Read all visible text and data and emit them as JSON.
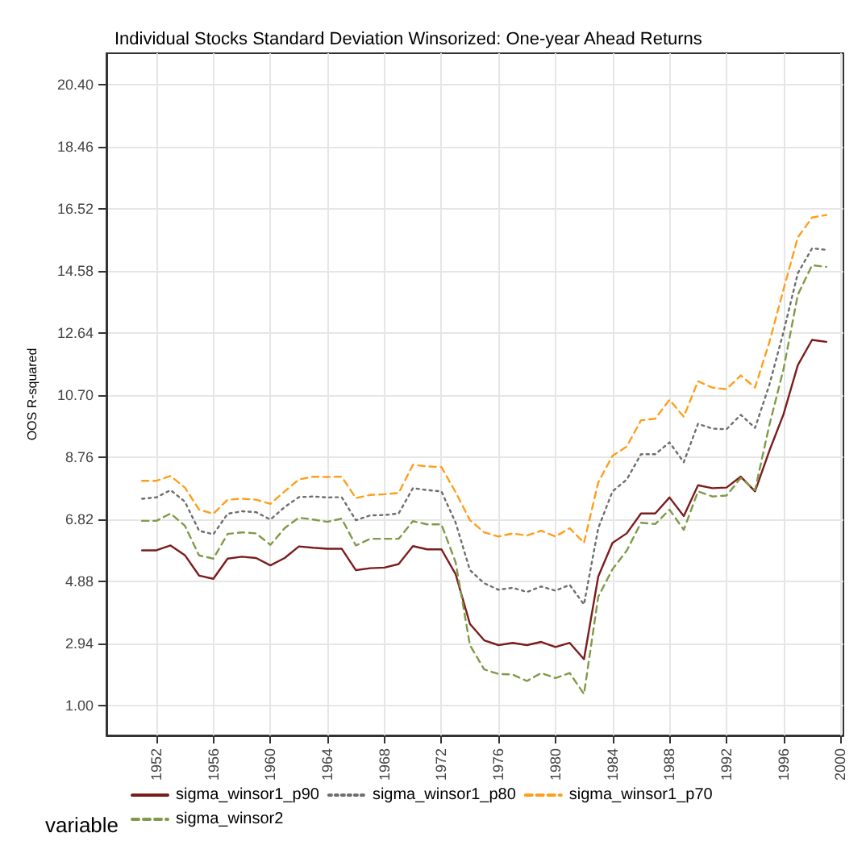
{
  "chart_data": {
    "type": "line",
    "title": "Individual Stocks Standard Deviation Winsorized: One-year Ahead Returns",
    "ylabel": "OOS R-squared",
    "legend_title": "variable",
    "x": [
      1951,
      1952,
      1953,
      1954,
      1955,
      1956,
      1957,
      1958,
      1959,
      1960,
      1961,
      1962,
      1963,
      1964,
      1965,
      1966,
      1967,
      1968,
      1969,
      1970,
      1971,
      1972,
      1973,
      1974,
      1975,
      1976,
      1977,
      1978,
      1979,
      1980,
      1981,
      1982,
      1983,
      1984,
      1985,
      1986,
      1987,
      1988,
      1989,
      1990,
      1991,
      1992,
      1993,
      1994,
      1995,
      1996,
      1997,
      1998,
      1999
    ],
    "series": [
      {
        "name": "sigma_winsor1_p90",
        "color": "#7b1c1c",
        "line_style": "solid",
        "values": [
          5.85,
          5.85,
          6.0,
          5.7,
          5.06,
          4.96,
          5.59,
          5.65,
          5.61,
          5.38,
          5.61,
          5.97,
          5.93,
          5.9,
          5.9,
          5.23,
          5.29,
          5.31,
          5.42,
          5.98,
          5.88,
          5.88,
          5.1,
          3.55,
          3.04,
          2.89,
          2.96,
          2.89,
          2.99,
          2.83,
          2.96,
          2.45,
          5.03,
          6.08,
          6.38,
          7.0,
          7.0,
          7.5,
          6.92,
          7.88,
          7.79,
          7.81,
          8.15,
          7.69,
          8.95,
          10.1,
          11.63,
          12.42,
          12.36
        ]
      },
      {
        "name": "sigma_winsor1_p80",
        "color": "#6e6e6e",
        "line_style": "dotted",
        "values": [
          7.46,
          7.5,
          7.73,
          7.37,
          6.46,
          6.35,
          6.99,
          7.07,
          7.04,
          6.81,
          7.2,
          7.51,
          7.53,
          7.5,
          7.51,
          6.79,
          6.94,
          6.95,
          7.0,
          7.79,
          7.73,
          7.69,
          6.71,
          5.23,
          4.82,
          4.62,
          4.68,
          4.55,
          4.72,
          4.59,
          4.77,
          4.16,
          6.54,
          7.69,
          8.06,
          8.85,
          8.85,
          9.22,
          8.6,
          9.8,
          9.65,
          9.63,
          10.08,
          9.67,
          11.01,
          12.67,
          14.5,
          15.28,
          15.23
        ]
      },
      {
        "name": "sigma_winsor1_p70",
        "color": "#ff9e1b",
        "line_style": "dashed",
        "values": [
          8.02,
          8.02,
          8.17,
          7.81,
          7.12,
          6.99,
          7.43,
          7.46,
          7.43,
          7.3,
          7.69,
          8.06,
          8.15,
          8.14,
          8.15,
          7.48,
          7.58,
          7.6,
          7.64,
          8.52,
          8.47,
          8.45,
          7.66,
          6.79,
          6.41,
          6.28,
          6.38,
          6.31,
          6.46,
          6.28,
          6.54,
          6.08,
          7.97,
          8.8,
          9.09,
          9.91,
          9.96,
          10.55,
          10.02,
          11.13,
          10.93,
          10.88,
          11.31,
          10.93,
          12.34,
          14.0,
          15.62,
          16.24,
          16.32
        ]
      },
      {
        "name": "sigma_winsor2",
        "color": "#7f9a48",
        "line_style": "dashed",
        "values": [
          6.77,
          6.77,
          7.0,
          6.62,
          5.69,
          5.59,
          6.36,
          6.41,
          6.38,
          6.02,
          6.54,
          6.87,
          6.81,
          6.74,
          6.84,
          6.0,
          6.21,
          6.21,
          6.21,
          6.76,
          6.66,
          6.66,
          5.47,
          2.89,
          2.13,
          1.99,
          1.97,
          1.77,
          2.02,
          1.86,
          2.02,
          1.36,
          4.4,
          5.26,
          5.84,
          6.71,
          6.67,
          7.12,
          6.49,
          7.69,
          7.53,
          7.56,
          8.11,
          7.73,
          9.75,
          11.51,
          13.83,
          14.75,
          14.7
        ]
      }
    ],
    "xlim": [
      1948.5,
      2000.2
    ],
    "xticks": [
      1952,
      1956,
      1960,
      1964,
      1968,
      1972,
      1976,
      1980,
      1984,
      1988,
      1992,
      1996,
      2000
    ],
    "ylim": [
      0.07,
      21.37
    ],
    "yticks": [
      {
        "value": 1,
        "label": "1.00"
      },
      {
        "value": 2.94,
        "label": "2.94"
      },
      {
        "value": 4.88,
        "label": "4.88"
      },
      {
        "value": 6.82,
        "label": "6.82"
      },
      {
        "value": 8.76,
        "label": "8.76"
      },
      {
        "value": 10.7,
        "label": "10.70"
      },
      {
        "value": 12.64,
        "label": "12.64"
      },
      {
        "value": 14.58,
        "label": "14.58"
      },
      {
        "value": 16.52,
        "label": "16.52"
      },
      {
        "value": 18.46,
        "label": "18.46"
      },
      {
        "value": 20.4,
        "label": "20.40"
      }
    ],
    "grid": true,
    "legend": "bottom",
    "marker": "none"
  }
}
